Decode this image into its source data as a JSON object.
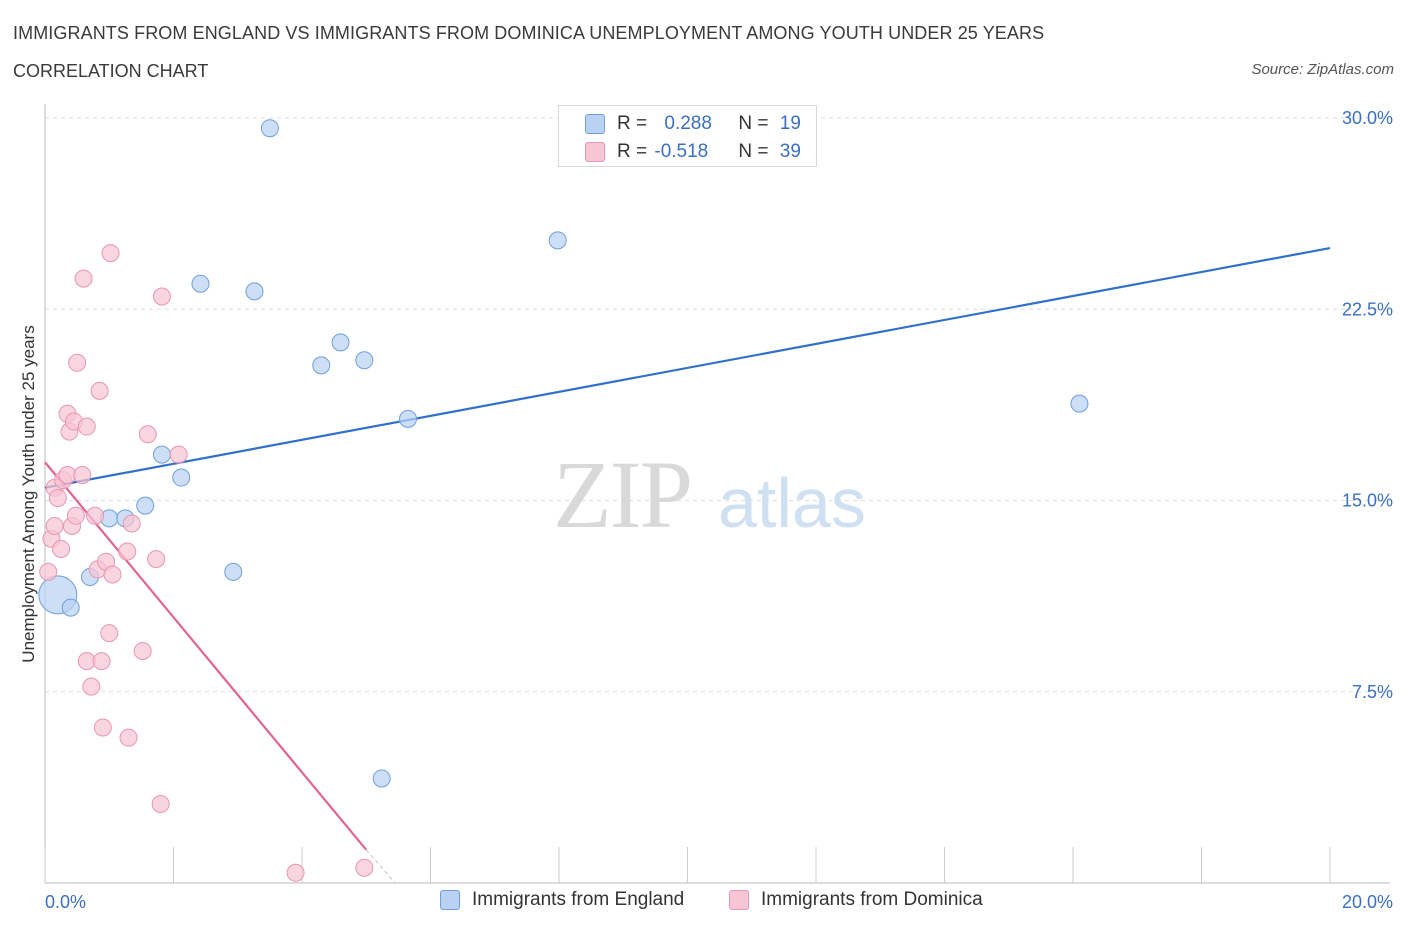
{
  "title": "IMMIGRANTS FROM ENGLAND VS IMMIGRANTS FROM DOMINICA UNEMPLOYMENT AMONG YOUTH UNDER 25 YEARS",
  "subtitle": "CORRELATION CHART",
  "source": "Source: ZipAtlas.com",
  "watermark": {
    "zip": "ZIP",
    "atlas": "atlas"
  },
  "stats": {
    "england": {
      "r_label": "R = ",
      "r_value": "0.288",
      "n_label": "N = ",
      "n_value": "19"
    },
    "dominica": {
      "r_label": "R = ",
      "r_value": "-0.518",
      "n_label": "N = ",
      "n_value": "39"
    }
  },
  "colors": {
    "england_fill": "#b9d2f3",
    "england_stroke": "#6f9fdc",
    "england_line": "#2f70cc",
    "dominica_fill": "#f7c5d4",
    "dominica_stroke": "#e996b0",
    "dominica_line": "#e0648f",
    "tick_label": "#3b6fc4",
    "grid": "#dddddd"
  },
  "chart_data": {
    "type": "scatter",
    "title": "IMMIGRANTS FROM ENGLAND VS IMMIGRANTS FROM DOMINICA UNEMPLOYMENT AMONG YOUTH UNDER 25 YEARS",
    "xlabel": "",
    "ylabel": "Unemployment Among Youth under 25 years",
    "xlim": [
      0,
      20
    ],
    "ylim": [
      0,
      30
    ],
    "x_tick_labels": [
      "0.0%",
      "20.0%"
    ],
    "y_ticks": [
      7.5,
      15.0,
      22.5,
      30.0
    ],
    "y_tick_labels": [
      "7.5%",
      "15.0%",
      "22.5%",
      "30.0%"
    ],
    "legend": [
      "Immigrants from England",
      "Immigrants from Dominica"
    ],
    "series": [
      {
        "name": "Immigrants from England",
        "points": [
          {
            "x": 0.2,
            "y": 11.3,
            "big": true
          },
          {
            "x": 0.4,
            "y": 10.8
          },
          {
            "x": 0.7,
            "y": 12.0
          },
          {
            "x": 1.0,
            "y": 14.3
          },
          {
            "x": 1.25,
            "y": 14.3
          },
          {
            "x": 1.56,
            "y": 14.8
          },
          {
            "x": 1.82,
            "y": 16.8
          },
          {
            "x": 2.12,
            "y": 15.9
          },
          {
            "x": 2.42,
            "y": 23.5
          },
          {
            "x": 2.93,
            "y": 12.2
          },
          {
            "x": 3.26,
            "y": 23.2
          },
          {
            "x": 3.5,
            "y": 29.6
          },
          {
            "x": 4.3,
            "y": 20.3
          },
          {
            "x": 4.6,
            "y": 21.2
          },
          {
            "x": 4.97,
            "y": 20.5
          },
          {
            "x": 5.24,
            "y": 4.1
          },
          {
            "x": 5.65,
            "y": 18.2
          },
          {
            "x": 7.98,
            "y": 25.2
          },
          {
            "x": 16.1,
            "y": 18.8
          }
        ],
        "trend": {
          "x0": 0.0,
          "y0": 15.5,
          "x1": 20.0,
          "y1": 24.9
        }
      },
      {
        "name": "Immigrants from Dominica",
        "points": [
          {
            "x": 0.05,
            "y": 12.2
          },
          {
            "x": 0.1,
            "y": 13.5
          },
          {
            "x": 0.15,
            "y": 15.5
          },
          {
            "x": 0.15,
            "y": 14.0
          },
          {
            "x": 0.2,
            "y": 15.1
          },
          {
            "x": 0.25,
            "y": 13.1
          },
          {
            "x": 0.28,
            "y": 15.8
          },
          {
            "x": 0.35,
            "y": 16.0
          },
          {
            "x": 0.35,
            "y": 18.4
          },
          {
            "x": 0.38,
            "y": 17.7
          },
          {
            "x": 0.42,
            "y": 14.0
          },
          {
            "x": 0.45,
            "y": 18.1
          },
          {
            "x": 0.48,
            "y": 14.4
          },
          {
            "x": 0.5,
            "y": 20.4
          },
          {
            "x": 0.58,
            "y": 16.0
          },
          {
            "x": 0.6,
            "y": 23.7
          },
          {
            "x": 0.65,
            "y": 17.9
          },
          {
            "x": 0.65,
            "y": 8.7
          },
          {
            "x": 0.72,
            "y": 7.7
          },
          {
            "x": 0.78,
            "y": 14.4
          },
          {
            "x": 0.82,
            "y": 12.3
          },
          {
            "x": 0.85,
            "y": 19.3
          },
          {
            "x": 0.88,
            "y": 8.7
          },
          {
            "x": 0.9,
            "y": 6.1
          },
          {
            "x": 0.95,
            "y": 12.6
          },
          {
            "x": 1.0,
            "y": 9.8
          },
          {
            "x": 1.02,
            "y": 24.7
          },
          {
            "x": 1.05,
            "y": 12.1
          },
          {
            "x": 1.28,
            "y": 13.0
          },
          {
            "x": 1.3,
            "y": 5.7
          },
          {
            "x": 1.35,
            "y": 14.1
          },
          {
            "x": 1.52,
            "y": 9.1
          },
          {
            "x": 1.6,
            "y": 17.6
          },
          {
            "x": 1.73,
            "y": 12.7
          },
          {
            "x": 1.8,
            "y": 3.1
          },
          {
            "x": 1.82,
            "y": 23.0
          },
          {
            "x": 2.08,
            "y": 16.8
          },
          {
            "x": 3.9,
            "y": 0.4
          },
          {
            "x": 4.97,
            "y": 0.6
          }
        ],
        "trend": {
          "x0": 0.0,
          "y0": 16.5,
          "x1": 5.0,
          "y1": 1.3
        },
        "trend_dashed": {
          "x0": 5.0,
          "y0": 1.3,
          "x1": 5.45,
          "y1": 0.0
        }
      }
    ]
  }
}
